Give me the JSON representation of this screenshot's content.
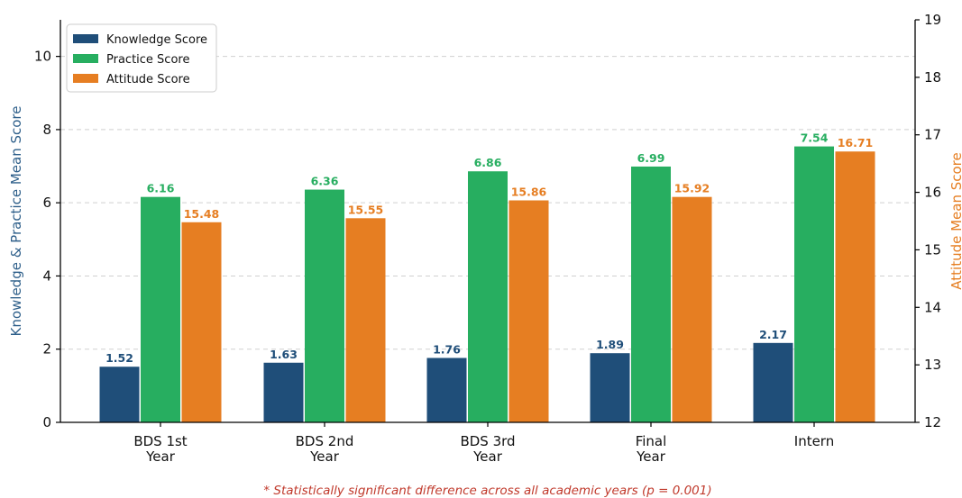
{
  "chart_data": {
    "type": "bar",
    "categories": [
      "BDS 1st\nYear",
      "BDS 2nd\nYear",
      "BDS 3rd\nYear",
      "Final\nYear",
      "Intern"
    ],
    "series": [
      {
        "name": "Knowledge Score",
        "axis": "left",
        "color": "#1f4e79",
        "label_color": "#1f4e79",
        "values": [
          1.52,
          1.63,
          1.76,
          1.89,
          2.17
        ],
        "labels": [
          "1.52",
          "1.63",
          "1.76",
          "1.89",
          "2.17"
        ]
      },
      {
        "name": "Practice Score",
        "axis": "left",
        "color": "#27ae60",
        "label_color": "#27ae60",
        "values": [
          6.16,
          6.36,
          6.86,
          6.99,
          7.54
        ],
        "labels": [
          "6.16",
          "6.36",
          "6.86",
          "6.99",
          "7.54"
        ]
      },
      {
        "name": "Attitude Score",
        "axis": "right",
        "color": "#e67e22",
        "label_color": "#e67e22",
        "values": [
          15.48,
          15.55,
          15.86,
          15.92,
          16.71
        ],
        "labels": [
          "15.48",
          "15.55",
          "15.86",
          "15.92",
          "16.71"
        ]
      }
    ],
    "y_left": {
      "label": "Knowledge & Practice Mean Score",
      "range": [
        0,
        11
      ],
      "ticks": [
        0,
        2,
        4,
        6,
        8,
        10
      ],
      "label_color": "#2e5f8a"
    },
    "y_right": {
      "label": "Attitude Mean Score",
      "range": [
        12,
        19
      ],
      "ticks": [
        12,
        13,
        14,
        15,
        16,
        17,
        18,
        19
      ],
      "label_color": "#e67e22"
    },
    "grid": "horizontal dashed",
    "legend_position": "top-left",
    "footnote": "* Statistically significant difference across all academic years (p = 0.001)",
    "footnote_color": "#c0392b"
  }
}
